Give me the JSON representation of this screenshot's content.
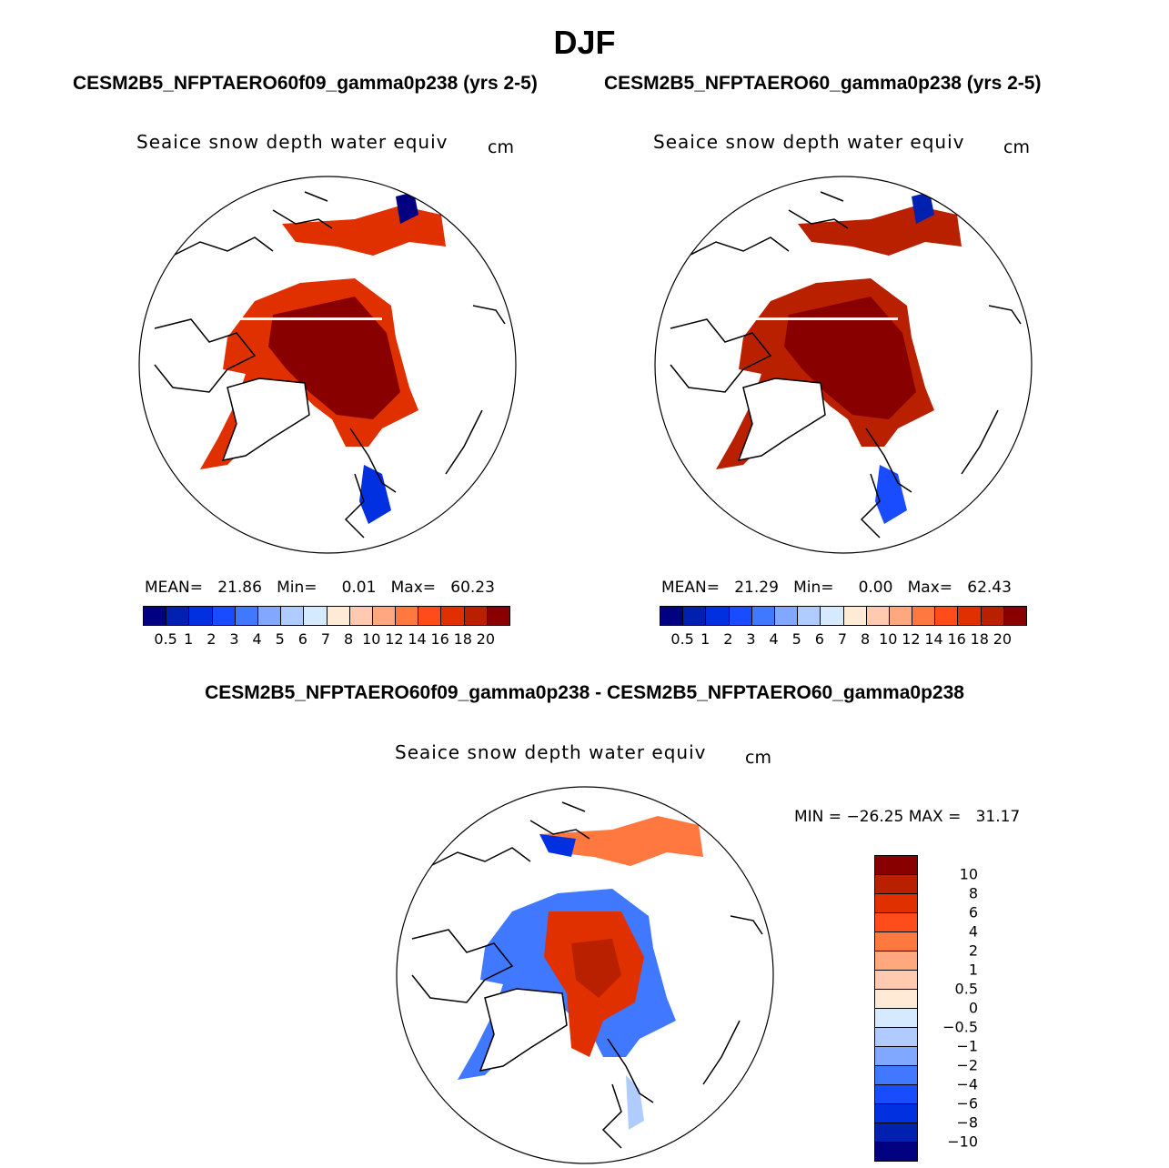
{
  "title": "DJF",
  "panels": [
    {
      "subtitle": "CESM2B5_NFPTAERO60f09_gamma0p238 (yrs 2-5)",
      "variable": "Seaice snow depth water equiv",
      "units": "cm",
      "stats": {
        "mean_label": "MEAN=",
        "mean": "21.86",
        "min_label": "Min=",
        "min": "0.01",
        "max_label": "Max=",
        "max": "60.23"
      }
    },
    {
      "subtitle": "CESM2B5_NFPTAERO60_gamma0p238 (yrs 2-5)",
      "variable": "Seaice snow depth water equiv",
      "units": "cm",
      "stats": {
        "mean_label": "MEAN=",
        "mean": "21.29",
        "min_label": "Min=",
        "min": "0.00",
        "max_label": "Max=",
        "max": "62.43"
      }
    }
  ],
  "diff_panel": {
    "subtitle": "CESM2B5_NFPTAERO60f09_gamma0p238 - CESM2B5_NFPTAERO60_gamma0p238",
    "variable": "Seaice snow depth water equiv",
    "units": "cm",
    "stats": {
      "text": "MIN = −26.25 MAX =   31.17"
    }
  },
  "colorbar_abs": {
    "colors": [
      "#000080",
      "#0020b0",
      "#0030e0",
      "#1a4cff",
      "#4078ff",
      "#80a8ff",
      "#b0ccff",
      "#d6eaff",
      "#ffead6",
      "#ffcab0",
      "#ffa880",
      "#ff7840",
      "#ff4c1a",
      "#e03000",
      "#b82000",
      "#880000"
    ],
    "labels": [
      "0.5",
      "1",
      "2",
      "3",
      "4",
      "5",
      "6",
      "7",
      "8",
      "10",
      "12",
      "14",
      "16",
      "18",
      "20"
    ]
  },
  "colorbar_diff": {
    "colors": [
      "#880000",
      "#b82000",
      "#e03000",
      "#ff4c1a",
      "#ff7840",
      "#ffa880",
      "#ffcab0",
      "#ffead6",
      "#d6eaff",
      "#b0ccff",
      "#80a8ff",
      "#4078ff",
      "#1a4cff",
      "#0030e0",
      "#0020b0",
      "#000080"
    ],
    "labels": [
      "10",
      "8",
      "6",
      "4",
      "2",
      "1",
      "0.5",
      "0",
      "−0.5",
      "−1",
      "−2",
      "−4",
      "−6",
      "−8",
      "−10"
    ]
  }
}
